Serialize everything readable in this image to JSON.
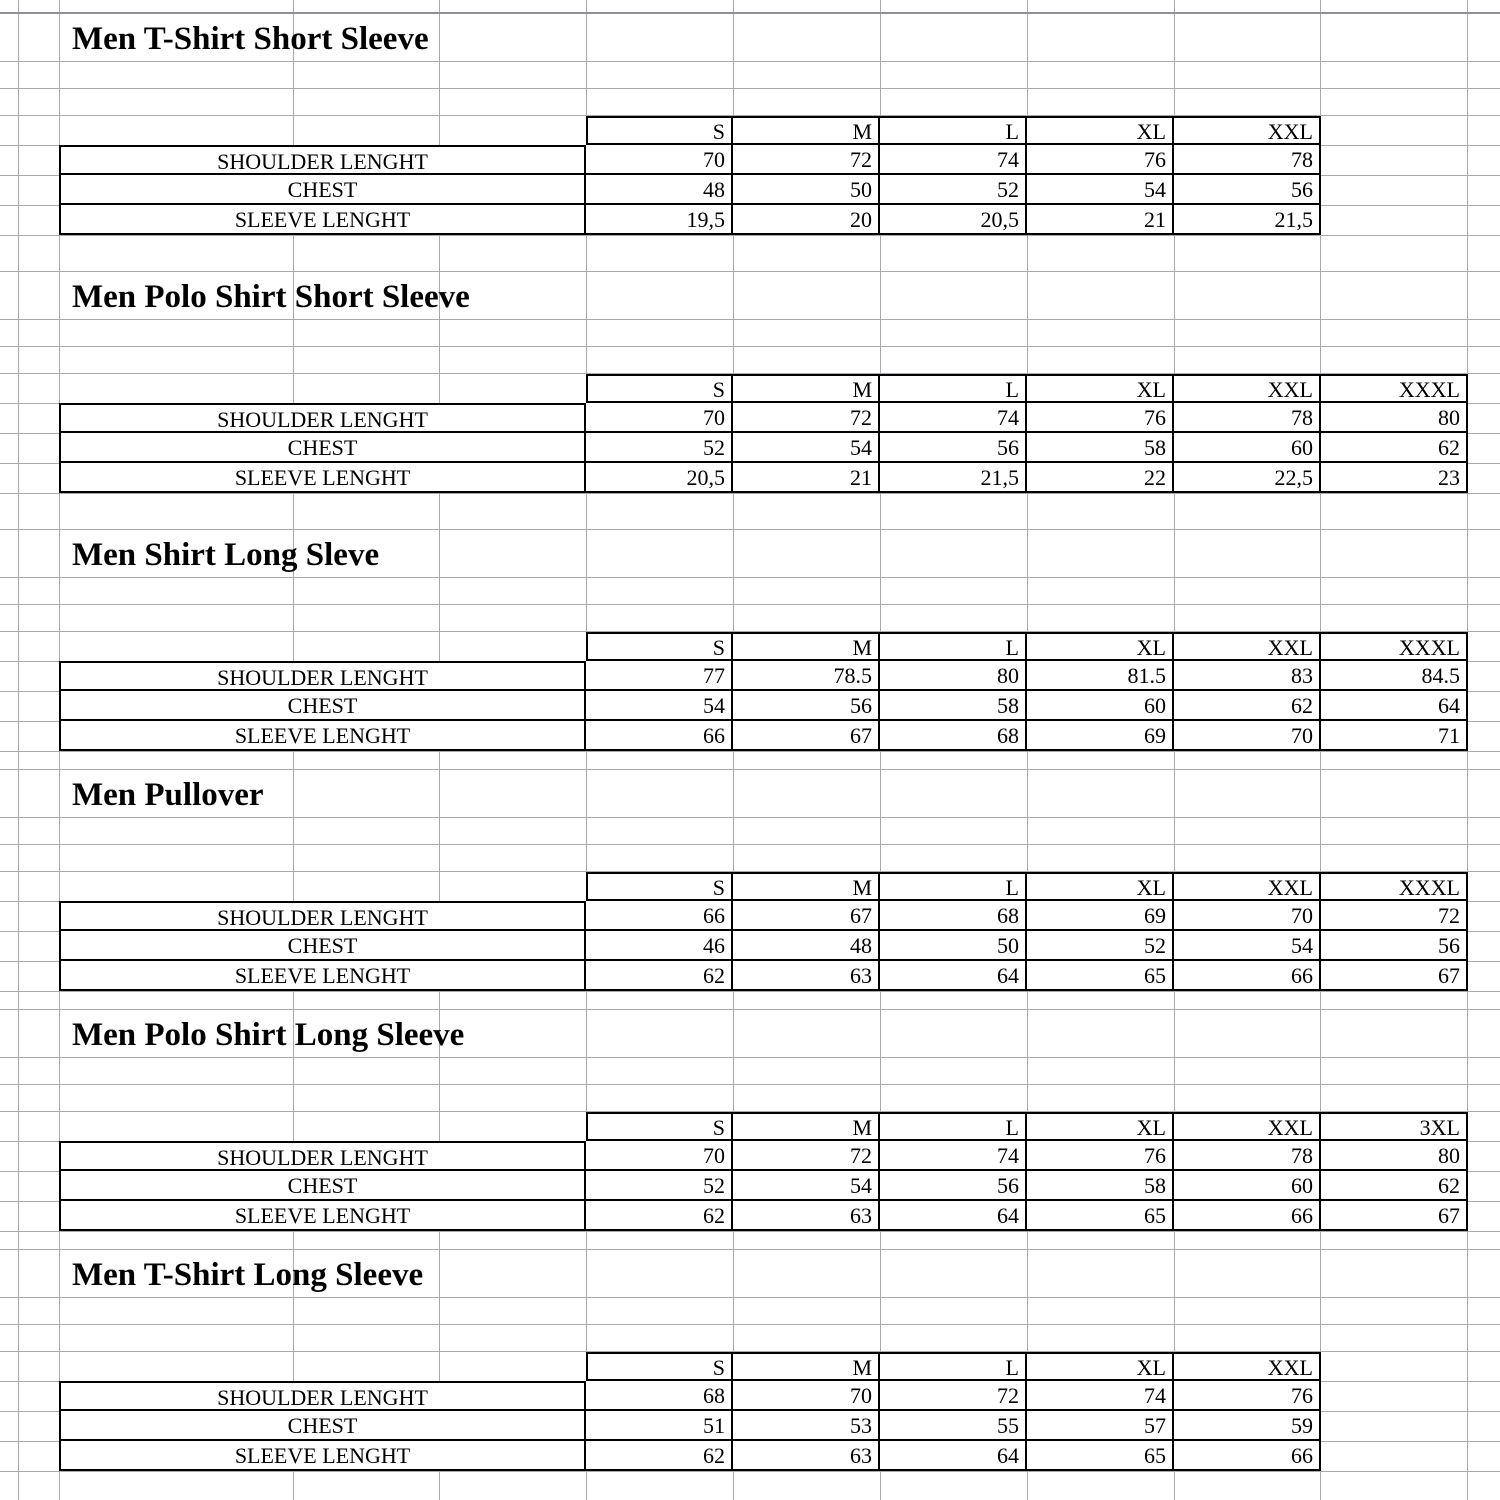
{
  "sections": [
    {
      "title": "Men T-Shirt Short Sleeve",
      "sizes": [
        {
          "label": "S",
          "underlined": true
        },
        {
          "label": "M",
          "underlined": true
        },
        {
          "label": "L",
          "underlined": true
        },
        {
          "label": "XL",
          "underlined": true
        },
        {
          "label": "XXL",
          "underlined": false
        }
      ],
      "rows": [
        {
          "label": "SHOULDER LENGHT",
          "values": [
            "70",
            "72",
            "74",
            "76",
            "78"
          ]
        },
        {
          "label": "CHEST",
          "values": [
            "48",
            "50",
            "52",
            "54",
            "56"
          ]
        },
        {
          "label": "SLEEVE LENGHT",
          "values": [
            "19,5",
            "20",
            "20,5",
            "21",
            "21,5"
          ]
        }
      ]
    },
    {
      "title": "Men Polo Shirt Short Sleeve",
      "sizes": [
        {
          "label": "S",
          "underlined": true
        },
        {
          "label": "M",
          "underlined": true
        },
        {
          "label": "L",
          "underlined": true
        },
        {
          "label": "XL",
          "underlined": true
        },
        {
          "label": "XXL",
          "underlined": true
        },
        {
          "label": "XXXL",
          "underlined": false
        }
      ],
      "rows": [
        {
          "label": "SHOULDER LENGHT",
          "values": [
            "70",
            "72",
            "74",
            "76",
            "78",
            "80"
          ]
        },
        {
          "label": "CHEST",
          "values": [
            "52",
            "54",
            "56",
            "58",
            "60",
            "62"
          ]
        },
        {
          "label": "SLEEVE LENGHT",
          "values": [
            "20,5",
            "21",
            "21,5",
            "22",
            "22,5",
            "23"
          ]
        }
      ]
    },
    {
      "title": "Men Shirt Long Sleve",
      "sizes": [
        {
          "label": "S",
          "underlined": true
        },
        {
          "label": "M",
          "underlined": true
        },
        {
          "label": "L",
          "underlined": true
        },
        {
          "label": "XL",
          "underlined": true
        },
        {
          "label": "XXL",
          "underlined": false
        },
        {
          "label": "XXXL",
          "underlined": false
        }
      ],
      "rows": [
        {
          "label": "SHOULDER LENGHT",
          "values": [
            "77",
            "78.5",
            "80",
            "81.5",
            "83",
            "84.5"
          ]
        },
        {
          "label": "CHEST",
          "values": [
            "54",
            "56",
            "58",
            "60",
            "62",
            "64"
          ]
        },
        {
          "label": "SLEEVE LENGHT",
          "values": [
            "66",
            "67",
            "68",
            "69",
            "70",
            "71"
          ]
        }
      ]
    },
    {
      "title": "Men Pullover",
      "sizes": [
        {
          "label": "S",
          "underlined": true
        },
        {
          "label": "M",
          "underlined": true
        },
        {
          "label": "L",
          "underlined": true
        },
        {
          "label": "XL",
          "underlined": true
        },
        {
          "label": "XXL",
          "underlined": false
        },
        {
          "label": "XXXL",
          "underlined": false
        }
      ],
      "rows": [
        {
          "label": "SHOULDER LENGHT",
          "values": [
            "66",
            "67",
            "68",
            "69",
            "70",
            "72"
          ]
        },
        {
          "label": "CHEST",
          "values": [
            "46",
            "48",
            "50",
            "52",
            "54",
            "56"
          ]
        },
        {
          "label": "SLEEVE LENGHT",
          "values": [
            "62",
            "63",
            "64",
            "65",
            "66",
            "67"
          ]
        }
      ]
    },
    {
      "title": "Men Polo Shirt Long Sleeve",
      "sizes": [
        {
          "label": "S",
          "underlined": true
        },
        {
          "label": "M",
          "underlined": true
        },
        {
          "label": "L",
          "underlined": true
        },
        {
          "label": "XL",
          "underlined": true
        },
        {
          "label": "XXL",
          "underlined": true
        },
        {
          "label": "3XL",
          "underlined": true
        }
      ],
      "rows": [
        {
          "label": "SHOULDER LENGHT",
          "values": [
            "70",
            "72",
            "74",
            "76",
            "78",
            "80"
          ]
        },
        {
          "label": "CHEST",
          "values": [
            "52",
            "54",
            "56",
            "58",
            "60",
            "62"
          ]
        },
        {
          "label": "SLEEVE LENGHT",
          "values": [
            "62",
            "63",
            "64",
            "65",
            "66",
            "67"
          ]
        }
      ]
    },
    {
      "title": "Men T-Shirt Long Sleeve",
      "sizes": [
        {
          "label": "S",
          "underlined": true
        },
        {
          "label": "M",
          "underlined": true
        },
        {
          "label": "L",
          "underlined": true
        },
        {
          "label": "XL",
          "underlined": true
        },
        {
          "label": "XXL",
          "underlined": true
        }
      ],
      "rows": [
        {
          "label": "SHOULDER LENGHT",
          "values": [
            "68",
            "70",
            "72",
            "74",
            "76"
          ]
        },
        {
          "label": "CHEST",
          "values": [
            "51",
            "53",
            "55",
            "57",
            "59"
          ]
        },
        {
          "label": "SLEEVE LENGHT",
          "values": [
            "62",
            "63",
            "64",
            "65",
            "66"
          ]
        }
      ]
    }
  ],
  "colors": {
    "background": "#ffffff",
    "gridline": "#a8a8b6",
    "table_border": "#000000",
    "header_underline": "#9b9b9b",
    "text": "#000000"
  }
}
